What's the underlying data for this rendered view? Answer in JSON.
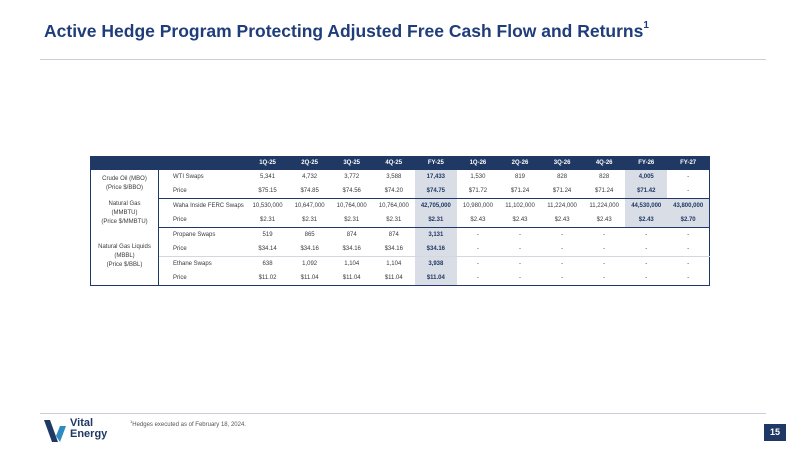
{
  "title": "Active Hedge Program Protecting Adjusted Free Cash Flow and Returns",
  "title_sup": "1",
  "table": {
    "headers": [
      "",
      "",
      "1Q-25",
      "2Q-25",
      "3Q-25",
      "4Q-25",
      "FY-25",
      "1Q-26",
      "2Q-26",
      "3Q-26",
      "4Q-26",
      "FY-26",
      "FY-27"
    ],
    "groups": {
      "crude": [
        "Crude Oil (MBO)",
        "(Price $/BBO)"
      ],
      "gas": [
        "Natural Gas",
        "(MMBTU)",
        "(Price $/MMBTU)"
      ],
      "ngl": [
        "Natural Gas Liquids",
        "(MBBL)",
        "(Price $/BBL)"
      ]
    },
    "rows": [
      {
        "label": "WTI Swaps",
        "values": [
          "5,341",
          "4,732",
          "3,772",
          "3,588",
          "17,433",
          "1,530",
          "819",
          "828",
          "828",
          "4,005",
          "-"
        ]
      },
      {
        "label": "Price",
        "values": [
          "$75.15",
          "$74.85",
          "$74.56",
          "$74.20",
          "$74.75",
          "$71.72",
          "$71.24",
          "$71.24",
          "$71.24",
          "$71.42",
          "-"
        ]
      },
      {
        "label": "Waha Inside FERC Swaps",
        "values": [
          "10,530,000",
          "10,647,000",
          "10,764,000",
          "10,764,000",
          "42,705,000",
          "10,980,000",
          "11,102,000",
          "11,224,000",
          "11,224,000",
          "44,530,000",
          "43,800,000"
        ]
      },
      {
        "label": "Price",
        "values": [
          "$2.31",
          "$2.31",
          "$2.31",
          "$2.31",
          "$2.31",
          "$2.43",
          "$2.43",
          "$2.43",
          "$2.43",
          "$2.43",
          "$2.70"
        ]
      },
      {
        "label": "Propane Swaps",
        "values": [
          "519",
          "865",
          "874",
          "874",
          "3,131",
          "-",
          "-",
          "-",
          "-",
          "-",
          "-"
        ]
      },
      {
        "label": "Price",
        "values": [
          "$34.14",
          "$34.16",
          "$34.16",
          "$34.16",
          "$34.16",
          "-",
          "-",
          "-",
          "-",
          "-",
          "-"
        ]
      },
      {
        "label": "Ethane Swaps",
        "values": [
          "638",
          "1,092",
          "1,104",
          "1,104",
          "3,938",
          "-",
          "-",
          "-",
          "-",
          "-",
          "-"
        ]
      },
      {
        "label": "Price",
        "values": [
          "$11.02",
          "$11.04",
          "$11.04",
          "$11.04",
          "$11.04",
          "-",
          "-",
          "-",
          "-",
          "-",
          "-"
        ]
      }
    ]
  },
  "footnote": {
    "sup": "1",
    "text": "Hedges executed as of February 18, 2024."
  },
  "logo": {
    "line1": "Vital",
    "line2": "Energy"
  },
  "page_number": "15",
  "colors": {
    "navy": "#1f3864",
    "fy_shade": "#d9dde6"
  }
}
